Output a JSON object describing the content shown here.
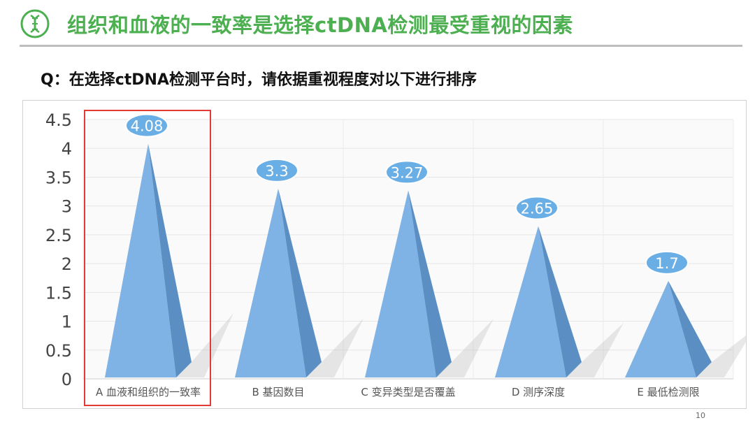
{
  "header": {
    "title": "组织和血液的一致率是选择ctDNA检测最受重视的因素",
    "logo_icon": "dna-icon",
    "accent_color": "#4caf50"
  },
  "question": "Q：在选择ctDNA检测平台时，请依据重视程度对以下进行排序",
  "page_number": "10",
  "chart_data": {
    "type": "bar",
    "mark_shape": "pyramid",
    "categories": [
      "A 血液和组织的一致率",
      "B 基因数目",
      "C 变异类型是否覆盖",
      "D 测序深度",
      "E 最低检测限"
    ],
    "values": [
      4.08,
      3.3,
      3.27,
      2.65,
      1.7
    ],
    "data_labels": [
      "4.08",
      "3.3",
      "3.27",
      "2.65",
      "1.7"
    ],
    "ylim": [
      0,
      4.5
    ],
    "yticks": [
      0,
      0.5,
      1,
      1.5,
      2,
      2.5,
      3,
      3.5,
      4,
      4.5
    ],
    "ytick_labels": [
      "0",
      "0.5",
      "1",
      "1.5",
      "2",
      "2.5",
      "3",
      "3.5",
      "4",
      "4.5"
    ],
    "grid": true,
    "highlighted_category": "A 血液和组织的一致率",
    "highlight_color": "#e53935",
    "bar_color": "#7fb2e5",
    "bar_shade_color": "#5b8fc4",
    "label_color": "#6aaee6"
  }
}
